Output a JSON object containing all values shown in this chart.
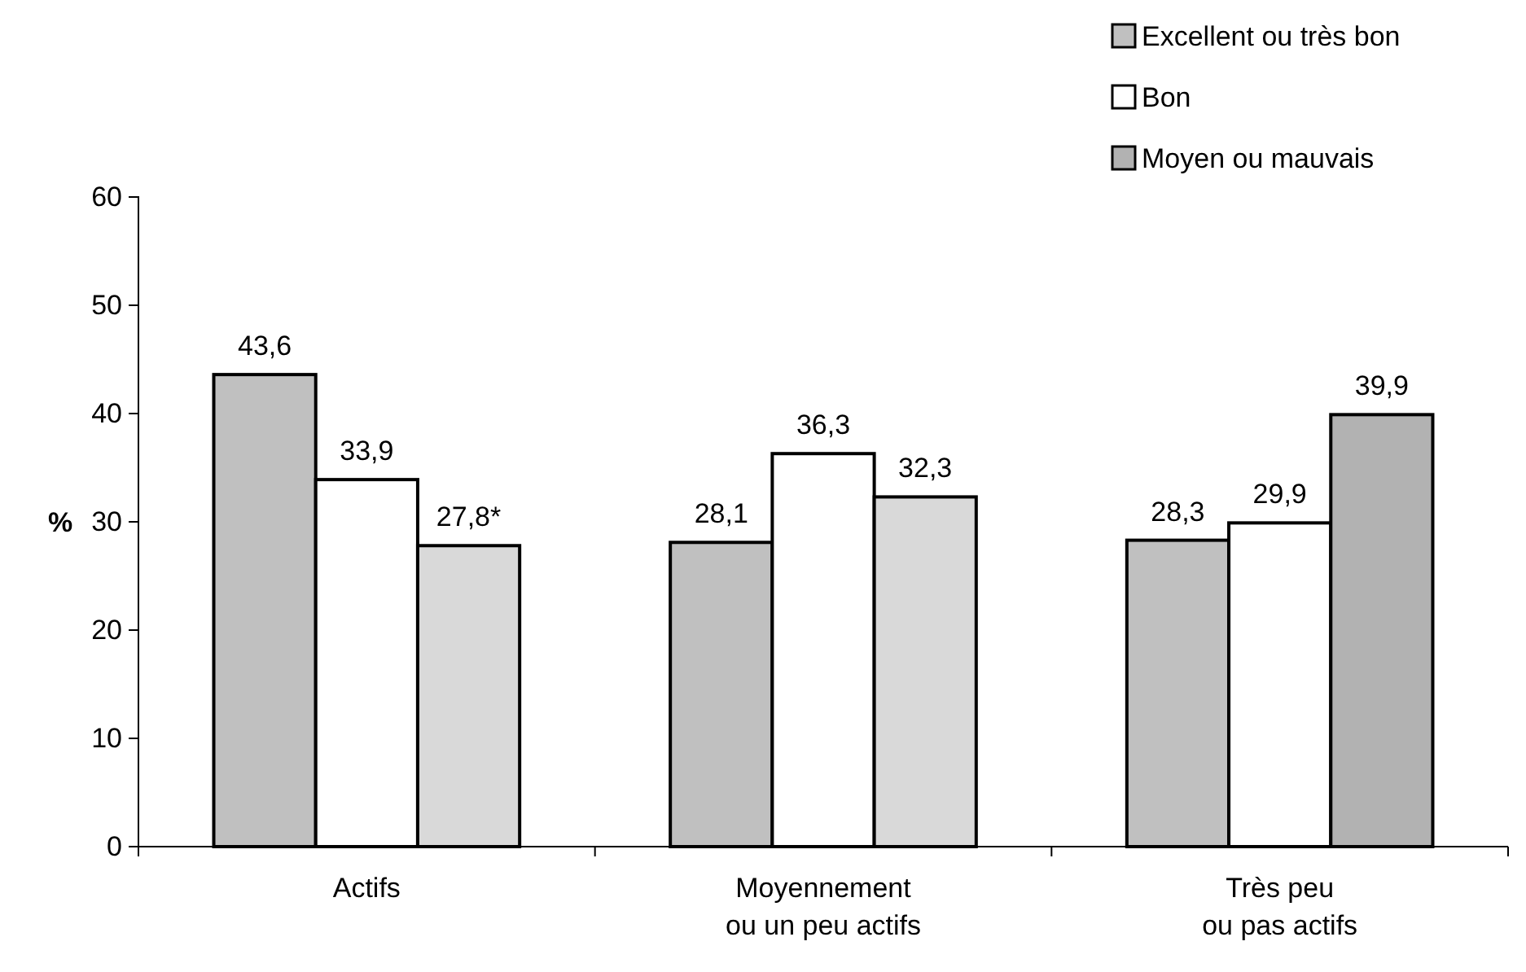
{
  "chart_data": {
    "type": "bar",
    "ylabel": "%",
    "categories": [
      "Actifs",
      "Moyennement\nou un peu actifs",
      "Très peu\nou pas actifs"
    ],
    "series": [
      {
        "name": "Excellent ou très bon",
        "color": "#c0c0c0",
        "values": [
          43.6,
          28.1,
          28.3
        ],
        "value_labels": [
          "43,6",
          "28,1",
          "28,3"
        ]
      },
      {
        "name": "Bon",
        "color": "#ffffff",
        "values": [
          33.9,
          36.3,
          29.9
        ],
        "value_labels": [
          "33,9",
          "36,3",
          "29,9"
        ]
      },
      {
        "name": "Moyen ou mauvais",
        "color": "#b2b2b2",
        "colors": [
          "#d9d9d9",
          "#d9d9d9",
          "#b2b2b2"
        ],
        "values": [
          27.8,
          32.3,
          39.9
        ],
        "value_labels": [
          "27,8*",
          "32,3",
          "39,9"
        ]
      }
    ],
    "ylim": [
      0,
      60
    ],
    "yticks": [
      0,
      10,
      20,
      30,
      40,
      50,
      60
    ],
    "grid": false,
    "legend": "top right"
  }
}
